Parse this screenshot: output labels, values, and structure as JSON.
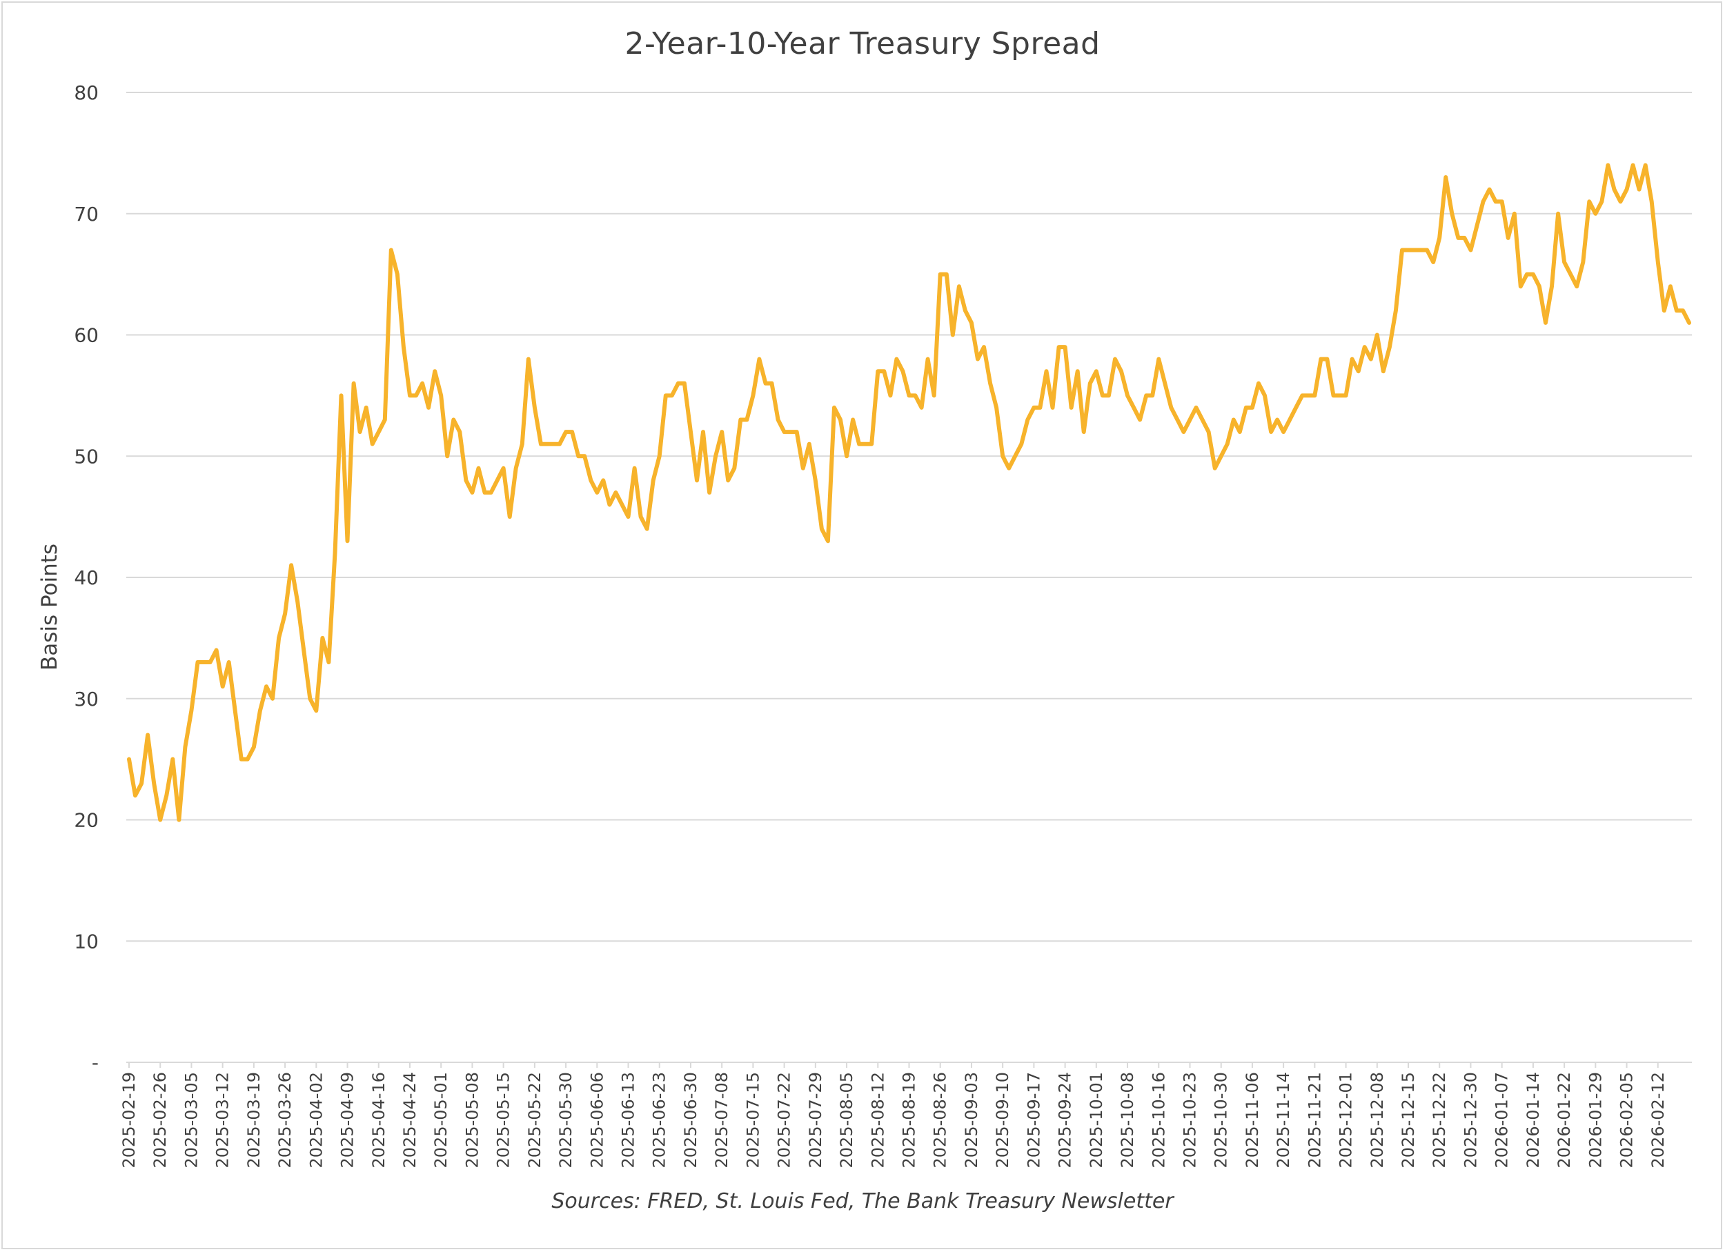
{
  "chart_data": {
    "type": "line",
    "title": "2-Year-10-Year Treasury Spread",
    "xlabel": "",
    "ylabel": "Basis Points",
    "source": "Sources: FRED, St. Louis Fed, The Bank Treasury Newsletter",
    "ylim": [
      0,
      80
    ],
    "yticks": [
      0,
      10,
      20,
      30,
      40,
      50,
      60,
      70,
      80
    ],
    "ytick_labels": [
      "-",
      "10",
      "20",
      "30",
      "40",
      "50",
      "60",
      "70",
      "80"
    ],
    "grid": "horizontal",
    "line_color": "#F7B32B",
    "xtick_labels": [
      "2025-02-19",
      "2025-02-26",
      "2025-03-05",
      "2025-03-12",
      "2025-03-19",
      "2025-03-26",
      "2025-04-02",
      "2025-04-09",
      "2025-04-16",
      "2025-04-24",
      "2025-05-01",
      "2025-05-08",
      "2025-05-15",
      "2025-05-22",
      "2025-05-30",
      "2025-06-06",
      "2025-06-13",
      "2025-06-23",
      "2025-06-30",
      "2025-07-08",
      "2025-07-15",
      "2025-07-22",
      "2025-07-29",
      "2025-08-05",
      "2025-08-12",
      "2025-08-19",
      "2025-08-26",
      "2025-09-03",
      "2025-09-10",
      "2025-09-17",
      "2025-09-24",
      "2025-10-01",
      "2025-10-08",
      "2025-10-16",
      "2025-10-23",
      "2025-10-30",
      "2025-11-06",
      "2025-11-14",
      "2025-11-21",
      "2025-12-01",
      "2025-12-08",
      "2025-12-15",
      "2025-12-22",
      "2025-12-30",
      "2026-01-07",
      "2026-01-14",
      "2026-01-22",
      "2026-01-29",
      "2026-02-05",
      "2026-02-12"
    ],
    "series": [
      {
        "values": [
          25,
          22,
          23,
          27,
          23,
          20,
          22,
          25,
          20,
          26,
          29,
          33,
          33,
          33,
          34,
          31,
          33,
          29,
          25,
          25,
          26,
          29,
          31,
          30,
          35,
          37,
          41,
          38,
          34,
          30,
          29,
          35,
          33,
          42,
          55,
          43,
          56,
          52,
          54,
          51,
          52,
          53,
          67,
          65,
          59,
          55,
          55,
          56,
          54,
          57,
          55,
          50,
          53,
          52,
          48,
          47,
          49,
          47,
          47,
          48,
          49,
          45,
          49,
          51,
          58,
          54,
          51,
          51,
          51,
          51,
          52,
          52,
          50,
          50,
          48,
          47,
          48,
          46,
          47,
          46,
          45,
          49,
          45,
          44,
          48,
          50,
          55,
          55,
          56,
          56,
          52,
          48,
          52,
          47,
          50,
          52,
          48,
          49,
          53,
          53,
          55,
          58,
          56,
          56,
          53,
          52,
          52,
          52,
          49,
          51,
          48,
          44,
          43,
          54,
          53,
          50,
          53,
          51,
          51,
          51,
          57,
          57,
          55,
          58,
          57,
          55,
          55,
          54,
          58,
          55,
          65,
          65,
          60,
          64,
          62,
          61,
          58,
          59,
          56,
          54,
          50,
          49,
          50,
          51,
          53,
          54,
          54,
          57,
          54,
          59,
          59,
          54,
          57,
          52,
          56,
          57,
          55,
          55,
          58,
          57,
          55,
          54,
          53,
          55,
          55,
          58,
          56,
          54,
          53,
          52,
          53,
          54,
          53,
          52,
          49,
          50,
          51,
          53,
          52,
          54,
          54,
          56,
          55,
          52,
          53,
          52,
          53,
          54,
          55,
          55,
          55,
          58,
          58,
          55,
          55,
          55,
          58,
          57,
          59,
          58,
          60,
          57,
          59,
          62,
          67,
          67,
          67,
          67,
          67,
          66,
          68,
          73,
          70,
          68,
          68,
          67,
          69,
          71,
          72,
          71,
          71,
          68,
          70,
          64,
          65,
          65,
          64,
          61,
          64,
          70,
          66,
          65,
          64,
          66,
          71,
          70,
          71,
          74,
          72,
          71,
          72,
          74,
          72,
          74,
          71,
          66,
          62,
          64,
          62,
          62,
          61
        ]
      }
    ]
  }
}
